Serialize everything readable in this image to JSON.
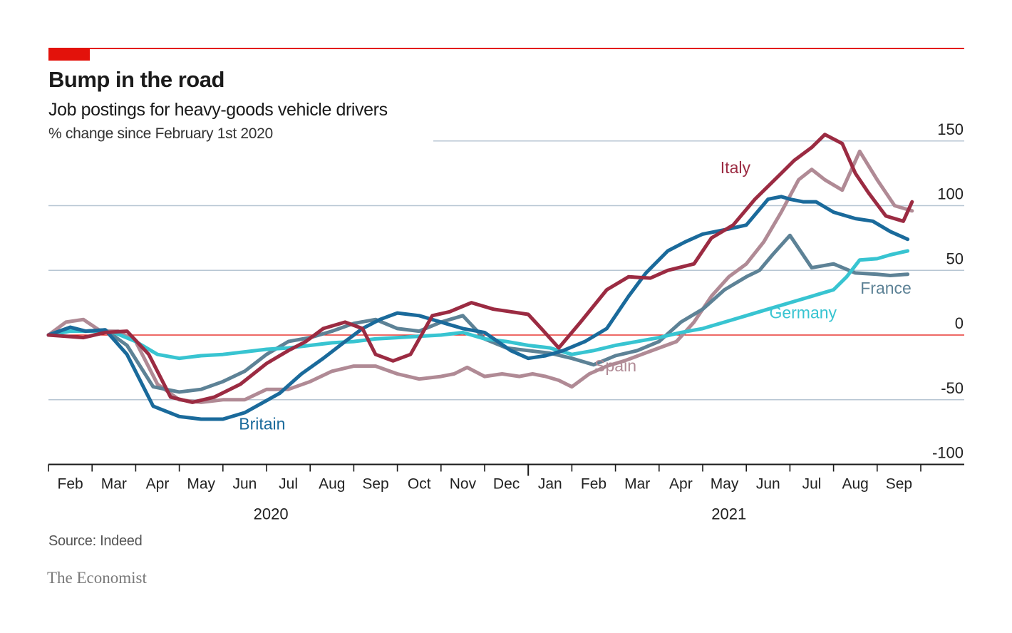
{
  "header": {
    "title": "Bump in the road",
    "subtitle": "Job postings for heavy-goods vehicle drivers",
    "unit": "% change since February 1st 2020"
  },
  "footer": {
    "source": "Source: Indeed",
    "brand": "The Economist"
  },
  "colors": {
    "accent": "#e3120b",
    "grid": "#b7c6d3",
    "zero": "#e3120b",
    "axis": "#1a1a1a",
    "text": "#1a1a1a",
    "Britain": "#1a6a9b",
    "Italy": "#9b2b42",
    "Spain": "#b08a95",
    "France": "#5d8296",
    "Germany": "#38c4d1"
  },
  "chart_data": {
    "type": "line",
    "title": "Bump in the road",
    "subtitle": "Job postings for heavy-goods vehicle drivers",
    "ylabel": "% change since February 1st 2020",
    "xlabel": "",
    "ylim": [
      -100,
      150
    ],
    "yticks": [
      150,
      100,
      50,
      0,
      -50,
      -100
    ],
    "ytick_labels": [
      "150",
      "100",
      "50",
      "0",
      "-50",
      "-100"
    ],
    "x_unit": "months since February 1st 2020",
    "xlim": [
      0,
      19.9
    ],
    "month_labels": [
      "Feb",
      "Mar",
      "Apr",
      "May",
      "Jun",
      "Jul",
      "Aug",
      "Sep",
      "Oct",
      "Nov",
      "Dec",
      "Jan",
      "Feb",
      "Mar",
      "Apr",
      "May",
      "Jun",
      "Jul",
      "Aug",
      "Sep"
    ],
    "year_labels": [
      {
        "label": "2020",
        "x": 5
      },
      {
        "label": "2021",
        "x": 15.5
      }
    ],
    "grid": true,
    "series": [
      {
        "name": "Britain",
        "label": "Britain",
        "label_x": 4.9,
        "label_y": -73,
        "x": [
          0,
          0.5,
          0.85,
          1.3,
          1.8,
          2.4,
          3,
          3.5,
          4,
          4.5,
          5.3,
          5.8,
          6.3,
          6.8,
          7.2,
          7.6,
          8,
          8.5,
          9,
          9.5,
          10,
          10.3,
          10.6,
          11,
          11.4,
          11.8,
          12.3,
          12.8,
          13.3,
          13.7,
          14.2,
          14.6,
          15,
          15.6,
          16,
          16.5,
          16.8,
          17,
          17.3,
          17.6,
          18,
          18.5,
          18.9,
          19.3,
          19.7
        ],
        "values": [
          0,
          6,
          3,
          4,
          -15,
          -55,
          -63,
          -65,
          -65,
          -60,
          -45,
          -30,
          -18,
          -5,
          5,
          12,
          17,
          15,
          10,
          5,
          2,
          -5,
          -12,
          -18,
          -16,
          -12,
          -5,
          5,
          30,
          48,
          65,
          72,
          78,
          82,
          85,
          105,
          107,
          105,
          103,
          103,
          95,
          90,
          88,
          80,
          74
        ]
      },
      {
        "name": "Italy",
        "label": "Italy",
        "label_x": 15.75,
        "label_y": 125,
        "x": [
          0,
          0.4,
          0.8,
          1.3,
          1.8,
          2.3,
          2.8,
          3.3,
          3.8,
          4.4,
          5,
          5.5,
          5.9,
          6.3,
          6.8,
          7.2,
          7.5,
          7.9,
          8.3,
          8.8,
          9.2,
          9.7,
          10.2,
          10.6,
          11,
          11.3,
          11.7,
          12.2,
          12.8,
          13.3,
          13.8,
          14.2,
          14.8,
          15.2,
          15.7,
          16.2,
          16.8,
          17.1,
          17.5,
          17.8,
          18.2,
          18.5,
          18.8,
          19.2,
          19.6,
          19.8
        ],
        "values": [
          0,
          -1,
          -2,
          2,
          3,
          -15,
          -48,
          -52,
          -48,
          -38,
          -22,
          -12,
          -5,
          5,
          10,
          5,
          -15,
          -20,
          -15,
          15,
          18,
          25,
          20,
          18,
          16,
          5,
          -10,
          10,
          35,
          45,
          44,
          50,
          55,
          75,
          85,
          105,
          125,
          135,
          145,
          155,
          148,
          125,
          110,
          92,
          88,
          103
        ]
      },
      {
        "name": "Spain",
        "label": "Spain",
        "label_x": 13,
        "label_y": -28,
        "x": [
          0,
          0.4,
          0.8,
          1.2,
          1.6,
          2,
          2.5,
          3,
          3.5,
          4,
          4.5,
          5,
          5.5,
          6,
          6.5,
          7,
          7.5,
          8,
          8.5,
          9,
          9.3,
          9.6,
          10,
          10.4,
          10.8,
          11.1,
          11.4,
          11.7,
          12,
          12.4,
          12.8,
          13.2,
          13.6,
          14,
          14.4,
          14.8,
          15.2,
          15.6,
          16,
          16.4,
          16.8,
          17.2,
          17.5,
          17.8,
          18.2,
          18.6,
          19,
          19.4,
          19.8
        ],
        "values": [
          0,
          10,
          12,
          3,
          3,
          -5,
          -38,
          -50,
          -52,
          -50,
          -50,
          -42,
          -42,
          -36,
          -28,
          -24,
          -24,
          -30,
          -34,
          -32,
          -30,
          -25,
          -32,
          -30,
          -32,
          -30,
          -32,
          -35,
          -40,
          -30,
          -24,
          -20,
          -15,
          -10,
          -5,
          10,
          30,
          45,
          55,
          72,
          95,
          120,
          128,
          120,
          112,
          142,
          120,
          100,
          96
        ]
      },
      {
        "name": "France",
        "label": "France",
        "label_x": 19.2,
        "label_y": 32,
        "x": [
          0,
          0.5,
          0.85,
          1.3,
          1.8,
          2.4,
          3,
          3.5,
          4,
          4.5,
          5,
          5.5,
          6,
          6.5,
          7,
          7.5,
          8,
          8.5,
          9,
          9.5,
          10,
          10.5,
          11,
          11.5,
          12,
          12.5,
          13,
          13.5,
          14,
          14.5,
          15,
          15.5,
          16,
          16.3,
          16.6,
          17,
          17.5,
          18,
          18.5,
          19,
          19.3,
          19.7
        ],
        "values": [
          0,
          6,
          3,
          4,
          -8,
          -40,
          -44,
          -42,
          -36,
          -28,
          -15,
          -5,
          -2,
          3,
          9,
          12,
          5,
          3,
          10,
          15,
          -3,
          -10,
          -12,
          -14,
          -18,
          -23,
          -16,
          -12,
          -5,
          10,
          20,
          35,
          45,
          50,
          62,
          77,
          52,
          55,
          48,
          47,
          46,
          47
        ]
      },
      {
        "name": "Germany",
        "label": "Germany",
        "label_x": 17.3,
        "label_y": 13,
        "x": [
          0,
          0.5,
          1,
          1.5,
          2,
          2.5,
          3,
          3.5,
          4,
          4.5,
          5,
          5.5,
          6,
          6.5,
          7,
          7.5,
          8,
          8.5,
          9,
          9.5,
          10,
          10.5,
          11,
          11.5,
          12,
          12.5,
          13,
          13.5,
          14,
          14.5,
          15,
          15.5,
          16,
          16.5,
          17,
          17.5,
          18,
          18.3,
          18.6,
          19,
          19.3,
          19.7
        ],
        "values": [
          0,
          3,
          3,
          2,
          -5,
          -15,
          -18,
          -16,
          -15,
          -13,
          -11,
          -10,
          -8,
          -6,
          -5,
          -3,
          -2,
          -1,
          0,
          2,
          -3,
          -5,
          -8,
          -10,
          -15,
          -12,
          -8,
          -5,
          -2,
          2,
          5,
          10,
          15,
          20,
          25,
          30,
          35,
          45,
          58,
          59,
          62,
          65
        ]
      }
    ]
  }
}
